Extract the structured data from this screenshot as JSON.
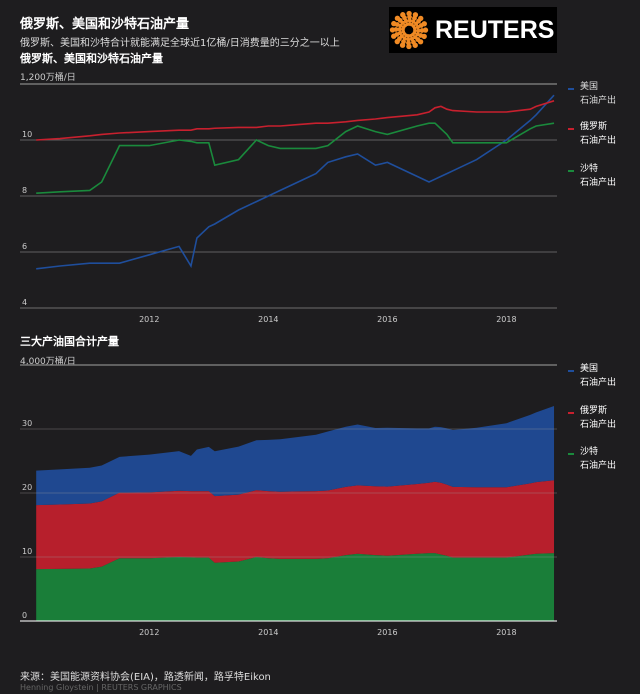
{
  "title": "俄罗斯、美国和沙特石油产量",
  "subtitle": "俄罗斯、美国和沙特合计就能满足全球近1亿桶/日消费量的三分之一以上",
  "logo_text": "REUTERS",
  "source": "来源：美国能源资料协会(EIA)，路透新闻，路孚特Eikon",
  "credit": "Henning Gloystein   | REUTERS GRAPHICS",
  "colors": {
    "us": "#1f4e9c",
    "russia": "#c8202e",
    "saudi": "#1a8a3c"
  },
  "chart_data": [
    {
      "type": "line",
      "title": "俄罗斯、美国和沙特石油产量",
      "ylabel": "1,200万桶/日",
      "ylim": [
        4,
        12
      ],
      "yticks": [
        "4",
        "6",
        "8",
        "10"
      ],
      "xticks": [
        "2012",
        "2014",
        "2016",
        "2018"
      ],
      "xlim": [
        2010.08,
        2018.85
      ],
      "grid": true,
      "legend": "right",
      "x": [
        2010.1,
        2010.5,
        2011,
        2011.2,
        2011.5,
        2012,
        2012.5,
        2012.7,
        2012.8,
        2013,
        2013.1,
        2013.5,
        2013.8,
        2014,
        2014.2,
        2014.5,
        2014.8,
        2015,
        2015.3,
        2015.5,
        2015.8,
        2016,
        2016.5,
        2016.7,
        2016.8,
        2016.9,
        2017,
        2017.1,
        2017.5,
        2018,
        2018.4,
        2018.5,
        2018.8
      ],
      "series": [
        {
          "name": "美国 石油产出",
          "key": "us",
          "values": [
            5.4,
            5.5,
            5.6,
            5.6,
            5.6,
            5.9,
            6.2,
            5.5,
            6.5,
            6.9,
            7.0,
            7.5,
            7.8,
            8.0,
            8.2,
            8.5,
            8.8,
            9.2,
            9.4,
            9.5,
            9.1,
            9.2,
            8.7,
            8.5,
            8.6,
            8.7,
            8.8,
            8.9,
            9.3,
            10.0,
            10.7,
            10.9,
            11.6
          ]
        },
        {
          "name": "俄罗斯 石油产出",
          "key": "russia",
          "values": [
            10.0,
            10.05,
            10.15,
            10.2,
            10.25,
            10.3,
            10.35,
            10.35,
            10.4,
            10.4,
            10.42,
            10.45,
            10.45,
            10.5,
            10.5,
            10.55,
            10.6,
            10.6,
            10.65,
            10.7,
            10.75,
            10.8,
            10.9,
            11.0,
            11.15,
            11.2,
            11.1,
            11.05,
            11.0,
            11.0,
            11.1,
            11.2,
            11.4
          ]
        },
        {
          "name": "沙特 石油产出",
          "key": "saudi",
          "values": [
            8.1,
            8.15,
            8.2,
            8.5,
            9.8,
            9.8,
            10.0,
            9.95,
            9.9,
            9.9,
            9.1,
            9.3,
            10.0,
            9.8,
            9.7,
            9.7,
            9.7,
            9.8,
            10.3,
            10.5,
            10.3,
            10.2,
            10.5,
            10.6,
            10.6,
            10.4,
            10.2,
            9.9,
            9.9,
            9.9,
            10.4,
            10.5,
            10.6
          ]
        }
      ]
    },
    {
      "type": "area",
      "stacked": true,
      "title": "三大产油国合计产量",
      "ylabel": "4,000万桶/日",
      "ylim": [
        0,
        40
      ],
      "yticks": [
        "0",
        "10",
        "20",
        "30"
      ],
      "xticks": [
        "2012",
        "2014",
        "2016",
        "2018"
      ],
      "legend": "right",
      "series_order": [
        "saudi",
        "russia",
        "us"
      ]
    }
  ]
}
